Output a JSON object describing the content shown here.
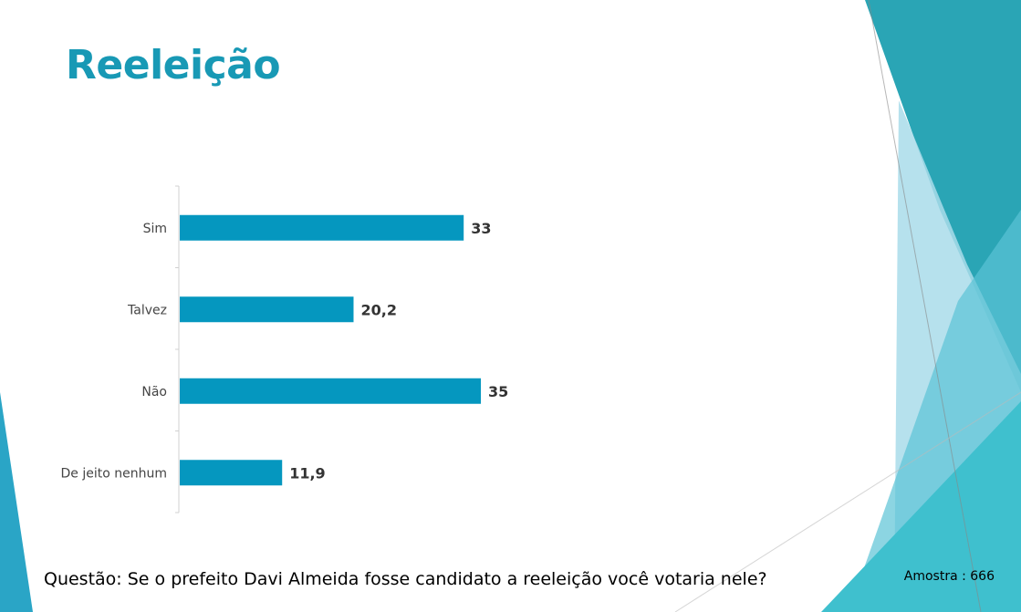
{
  "slide": {
    "title": "Reeleição",
    "question": "Questão: Se o prefeito Davi Almeida fosse candidato a reeleição você votaria nele?",
    "sample": "Amostra : 666"
  },
  "colors": {
    "bar": "#0597bf",
    "title": "#1899b5",
    "deco_dark": "#2aa5b5",
    "deco_light": "#a9dcea",
    "deco_mid": "#3fc0ce"
  },
  "chart_data": {
    "type": "bar",
    "orientation": "horizontal",
    "categories": [
      "Sim",
      "Talvez",
      "Não",
      "De jeito nenhum"
    ],
    "values": [
      33,
      20.2,
      35,
      11.9
    ],
    "value_labels": [
      "33",
      "20,2",
      "35",
      "11,9"
    ],
    "xlim": [
      0,
      35
    ],
    "grid": false,
    "legend": "none"
  }
}
